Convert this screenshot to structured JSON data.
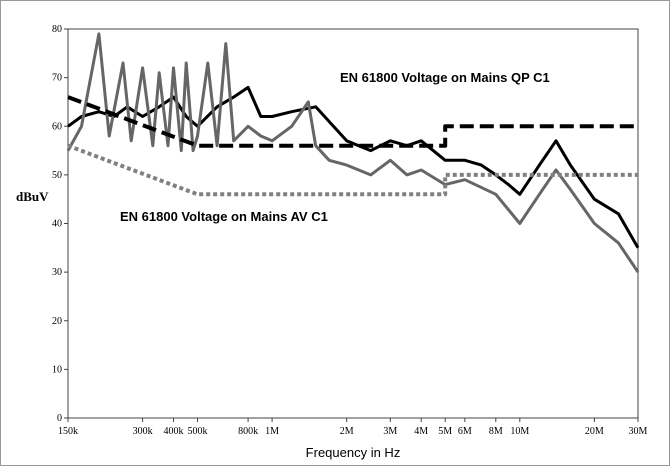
{
  "chart_data": {
    "type": "line",
    "xscale": "log",
    "xlabel": "Frequency in Hz",
    "ylabel": "dBuV",
    "annotations": [
      "EN 61800 Voltage on Mains QP  C1",
      "EN 61800 Voltage on Mains AV  C1"
    ],
    "xlim": [
      150000,
      30000000
    ],
    "ylim": [
      0,
      80
    ],
    "xticks": [
      {
        "value": 150000,
        "label": "150k"
      },
      {
        "value": 300000,
        "label": "300k"
      },
      {
        "value": 400000,
        "label": "400k"
      },
      {
        "value": 500000,
        "label": "500k"
      },
      {
        "value": 800000,
        "label": "800k"
      },
      {
        "value": 1000000,
        "label": "1M"
      },
      {
        "value": 2000000,
        "label": "2M"
      },
      {
        "value": 3000000,
        "label": "3M"
      },
      {
        "value": 4000000,
        "label": "4M"
      },
      {
        "value": 5000000,
        "label": "5M"
      },
      {
        "value": 6000000,
        "label": "6M"
      },
      {
        "value": 8000000,
        "label": "8M"
      },
      {
        "value": 10000000,
        "label": "10M"
      },
      {
        "value": 20000000,
        "label": "20M"
      },
      {
        "value": 30000000,
        "label": "30M"
      }
    ],
    "yticks": [
      0,
      10,
      20,
      30,
      40,
      50,
      60,
      70,
      80
    ],
    "series": [
      {
        "color": "#000000",
        "style": "solid",
        "width": 3,
        "x": [
          150000,
          170000,
          200000,
          230000,
          260000,
          300000,
          350000,
          400000,
          450000,
          500000,
          600000,
          700000,
          800000,
          900000,
          1000000,
          1200000,
          1500000,
          2000000,
          2500000,
          3000000,
          3500000,
          4000000,
          5000000,
          6000000,
          7000000,
          8000000,
          9000000,
          10000000,
          12000000,
          14000000,
          16000000,
          20000000,
          25000000,
          30000000
        ],
        "values": [
          60,
          62,
          63,
          62,
          64,
          62,
          64,
          66,
          62,
          60,
          64,
          66,
          68,
          62,
          62,
          63,
          64,
          57,
          55,
          57,
          56,
          57,
          53,
          53,
          52,
          50,
          48,
          46,
          52,
          57,
          52,
          45,
          42,
          35
        ]
      },
      {
        "color": "#666666",
        "style": "solid",
        "width": 3,
        "x": [
          150000,
          170000,
          200000,
          220000,
          250000,
          270000,
          300000,
          330000,
          350000,
          380000,
          400000,
          430000,
          450000,
          480000,
          500000,
          550000,
          600000,
          650000,
          700000,
          800000,
          900000,
          1000000,
          1200000,
          1400000,
          1500000,
          1700000,
          2000000,
          2500000,
          3000000,
          3500000,
          4000000,
          5000000,
          6000000,
          8000000,
          10000000,
          12000000,
          14000000,
          16000000,
          20000000,
          25000000,
          30000000
        ],
        "values": [
          55,
          60,
          79,
          58,
          73,
          57,
          72,
          56,
          71,
          56,
          72,
          55,
          73,
          55,
          58,
          73,
          56,
          77,
          57,
          60,
          58,
          57,
          60,
          65,
          56,
          53,
          52,
          50,
          53,
          50,
          51,
          48,
          49,
          46,
          40,
          46,
          51,
          47,
          40,
          36,
          30
        ]
      },
      {
        "name": "EN 61800 Voltage on Mains QP  C1",
        "color": "#000000",
        "style": "dashed",
        "width": 4,
        "x": [
          150000,
          500000,
          5000000,
          5000000,
          30000000
        ],
        "values": [
          66,
          56,
          56,
          60,
          60
        ]
      },
      {
        "name": "EN 61800 Voltage on Mains AV  C1",
        "color": "#808080",
        "style": "dotted",
        "width": 4,
        "x": [
          150000,
          500000,
          5000000,
          5000000,
          30000000
        ],
        "values": [
          56,
          46,
          46,
          50,
          50
        ]
      }
    ]
  }
}
